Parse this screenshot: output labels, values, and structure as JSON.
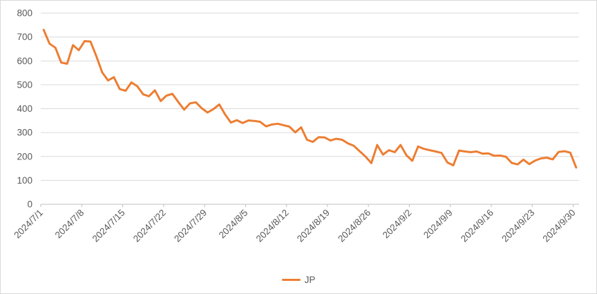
{
  "chart_data": {
    "type": "line",
    "title": "",
    "xlabel": "",
    "ylabel": "",
    "x_tick_labels": [
      "2024/7/1",
      "2024/7/8",
      "2024/7/15",
      "2024/7/22",
      "2024/7/29",
      "2024/8/5",
      "2024/8/12",
      "2024/8/19",
      "2024/8/26",
      "2024/9/2",
      "2024/9/9",
      "2024/9/16",
      "2024/9/23",
      "2024/9/30"
    ],
    "x_tick_interval_days": 7,
    "y_ticks": [
      0,
      100,
      200,
      300,
      400,
      500,
      600,
      700,
      800
    ],
    "ylim": [
      0,
      800
    ],
    "grid": "horizontal",
    "legend_position": "bottom",
    "series": [
      {
        "name": "JP",
        "color": "#ED7D31",
        "values": [
          730,
          672,
          655,
          593,
          588,
          666,
          645,
          683,
          681,
          620,
          552,
          518,
          532,
          482,
          475,
          510,
          494,
          460,
          452,
          477,
          432,
          455,
          462,
          428,
          396,
          422,
          427,
          402,
          384,
          398,
          418,
          376,
          342,
          352,
          340,
          351,
          349,
          345,
          326,
          334,
          337,
          331,
          325,
          301,
          322,
          270,
          261,
          281,
          280,
          267,
          274,
          270,
          255,
          245,
          222,
          200,
          172,
          248,
          208,
          226,
          218,
          248,
          205,
          182,
          242,
          232,
          226,
          221,
          215,
          175,
          163,
          225,
          221,
          218,
          221,
          212,
          213,
          203,
          204,
          199,
          173,
          167,
          187,
          168,
          183,
          192,
          195,
          188,
          219,
          222,
          216,
          154
        ]
      }
    ]
  },
  "legend": {
    "label": "JP"
  },
  "colors": {
    "series": "#ED7D31",
    "grid": "#D9D9D9",
    "axis": "#BFBFBF",
    "text": "#595959",
    "background": "#FFFFFF",
    "border": "#D9D9D9"
  }
}
